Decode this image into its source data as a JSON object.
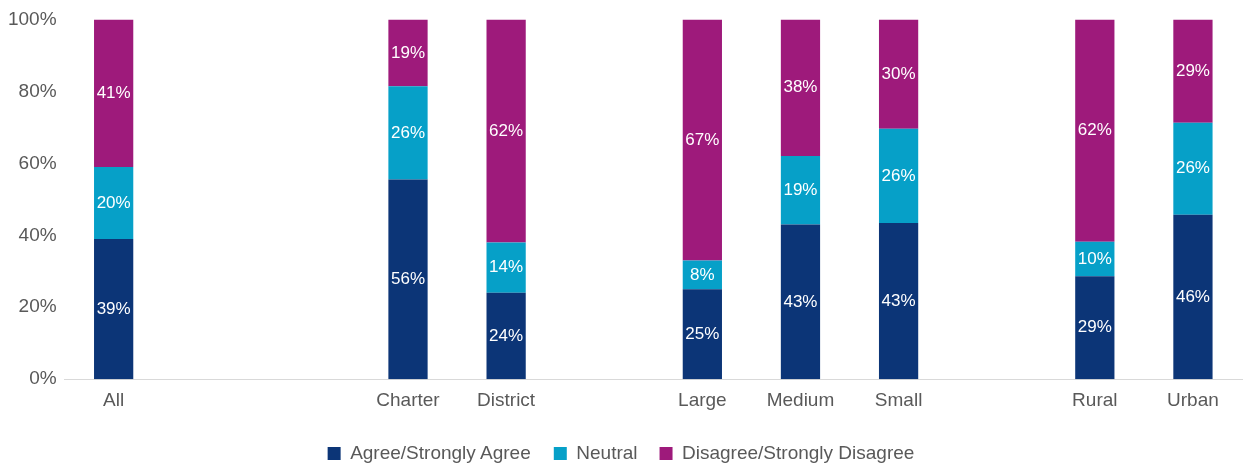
{
  "chart_data": {
    "type": "bar",
    "stacked": true,
    "categories": [
      "All",
      null,
      null,
      "Charter",
      "District",
      null,
      "Large",
      "Medium",
      "Small",
      null,
      "Rural",
      "Urban"
    ],
    "series": [
      {
        "name": "Agree/Strongly Agree",
        "color": "#0c3577",
        "values": [
          39,
          null,
          null,
          55.5,
          24,
          null,
          25,
          43,
          43.4,
          null,
          28.6,
          45.7
        ],
        "value_labels": [
          "39%",
          null,
          null,
          "56%",
          "24%",
          null,
          "25%",
          "43%",
          "43%",
          null,
          "29%",
          "46%"
        ]
      },
      {
        "name": "Neutral",
        "color": "#06a0c8",
        "values": [
          20,
          null,
          null,
          25.9,
          14,
          null,
          8,
          19,
          26.2,
          null,
          9.6,
          25.6
        ],
        "value_labels": [
          "20%",
          null,
          null,
          "26%",
          "14%",
          null,
          "8%",
          "19%",
          "26%",
          null,
          "10%",
          "26%"
        ]
      },
      {
        "name": "Disagree/Strongly Disagree",
        "color": "#9e1a7b",
        "values": [
          41,
          null,
          null,
          18.6,
          62,
          null,
          67,
          38,
          30.4,
          null,
          61.8,
          28.7
        ],
        "value_labels": [
          "41%",
          null,
          null,
          "19%",
          "62%",
          null,
          "67%",
          "38%",
          "30%",
          null,
          "62%",
          "29%"
        ]
      }
    ],
    "ylim": [
      0,
      100
    ],
    "yticks": [
      {
        "value": 0,
        "label": "0%"
      },
      {
        "value": 20,
        "label": "20%"
      },
      {
        "value": 40,
        "label": "40%"
      },
      {
        "value": 60,
        "label": "60%"
      },
      {
        "value": 80,
        "label": "80%"
      },
      {
        "value": 100,
        "label": "100%"
      }
    ],
    "grid": false,
    "legend": "bottom"
  }
}
